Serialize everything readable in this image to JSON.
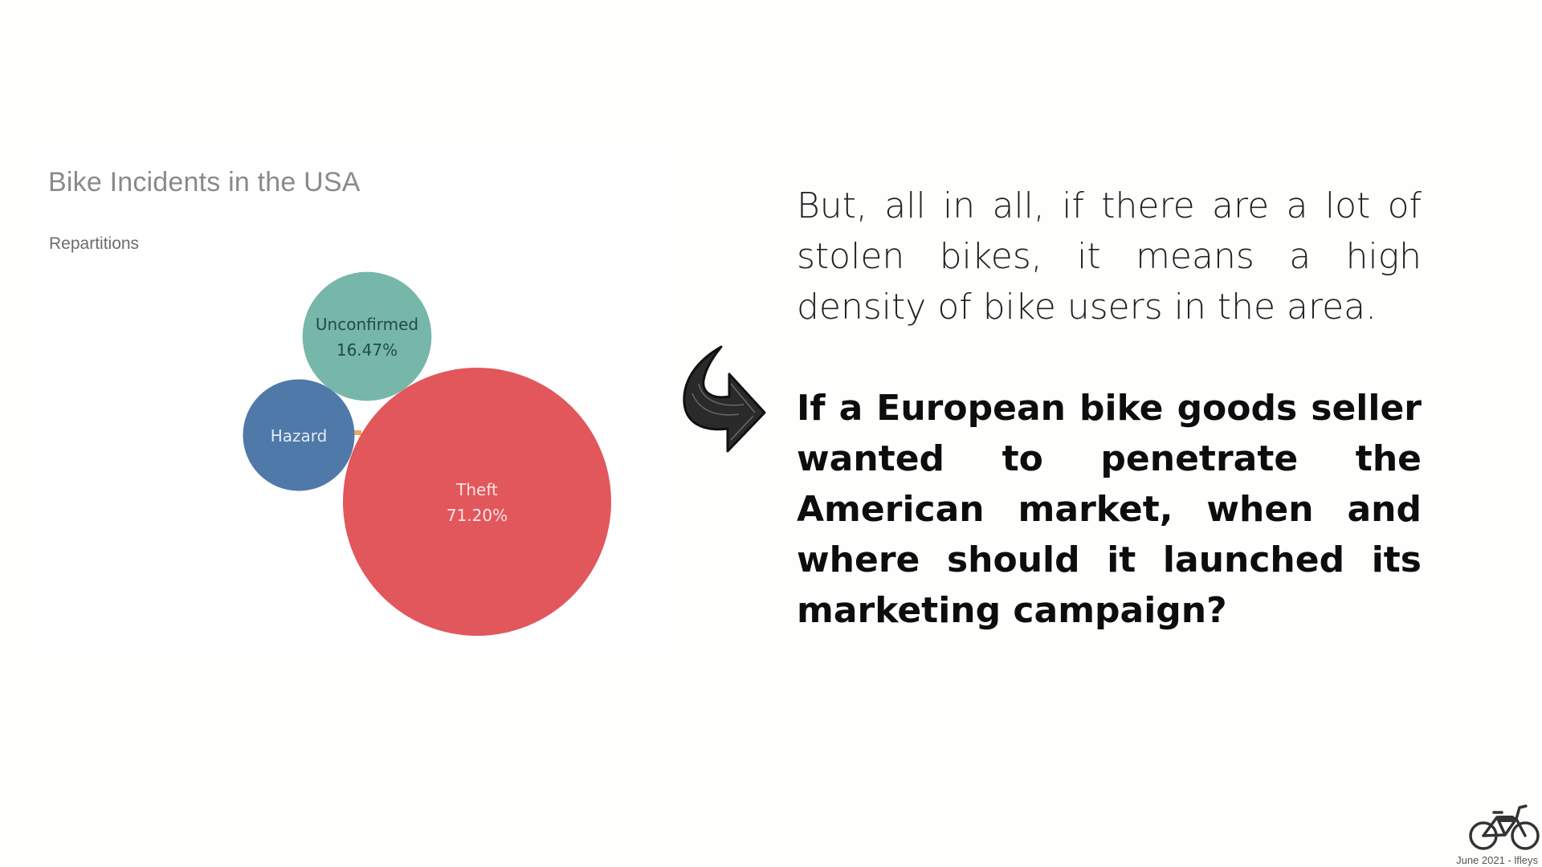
{
  "chart_data": {
    "type": "bubble",
    "title": "Bike Incidents in the USA",
    "subtitle": "Repartitions",
    "series": [
      {
        "label": "Theft",
        "value": 71.2,
        "display": "71.20%",
        "color": "#e1575c",
        "text_color": "#fbe4e4"
      },
      {
        "label": "Unconfirmed",
        "value": 16.47,
        "display": "16.47%",
        "color": "#76b7aa",
        "text_color": "#234a44"
      },
      {
        "label": "Hazard",
        "value": 12.33,
        "display": "",
        "color": "#4e79a8",
        "text_color": "#e3ebf4"
      }
    ]
  },
  "text": {
    "intro": "But, all in all, if there are a lot of stolen bikes, it means a high density of bike users in the area.",
    "question": "If a European bike goods seller wanted to penetrate the American market, when and where should it launched its marketing campaign?"
  },
  "footer": {
    "credit": "June 2021 - lfleys",
    "logo_icon": "bicycle-icon"
  },
  "decor": {
    "arrow_icon": "curved-arrow-right-icon"
  }
}
